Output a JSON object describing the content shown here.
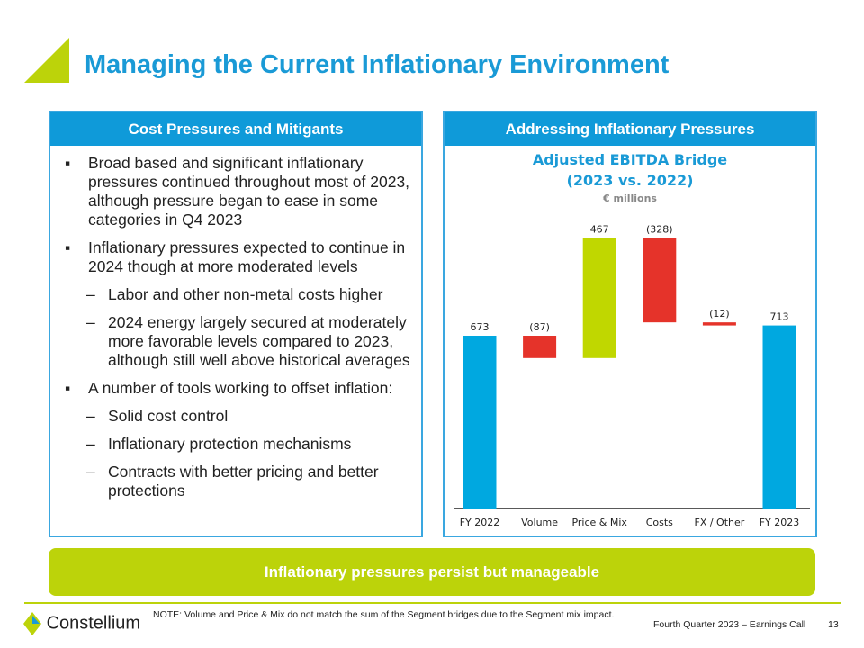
{
  "title": "Managing the Current Inflationary Environment",
  "left_panel": {
    "header": "Cost Pressures and Mitigants",
    "items": [
      {
        "level": 1,
        "text": "Broad based and significant inflationary pressures continued throughout most of 2023, although pressure began to ease in some categories in Q4 2023"
      },
      {
        "level": 1,
        "text": "Inflationary pressures expected to continue in 2024 though at more moderated levels"
      },
      {
        "level": 2,
        "text": "Labor and other non-metal costs higher"
      },
      {
        "level": 2,
        "text": "2024 energy largely secured at moderately more favorable levels compared to 2023, although still well above historical averages"
      },
      {
        "level": 1,
        "text": "A number of tools working to offset inflation:"
      },
      {
        "level": 2,
        "text": "Solid cost control"
      },
      {
        "level": 2,
        "text": "Inflationary protection mechanisms"
      },
      {
        "level": 2,
        "text": "Contracts with better pricing and better protections"
      }
    ]
  },
  "right_panel": {
    "header": "Addressing Inflationary Pressures"
  },
  "chart_data": {
    "type": "waterfall",
    "title": "Adjusted EBITDA Bridge",
    "subtitle": "(2023 vs. 2022)",
    "unit": "€ millions",
    "categories": [
      "FY 2022",
      "Volume",
      "Price & Mix",
      "Costs",
      "FX / Other",
      "FY 2023"
    ],
    "values": [
      673,
      -87,
      467,
      -328,
      -12,
      713
    ],
    "labels": [
      "673",
      "(87)",
      "467",
      "(328)",
      "(12)",
      "713"
    ],
    "kinds": [
      "total",
      "delta",
      "delta",
      "delta",
      "delta",
      "total"
    ],
    "colors": {
      "total": "#00a8e0",
      "increase": "#c0d700",
      "decrease": "#e5332a"
    }
  },
  "banner": "Inflationary pressures persist but manageable",
  "footer": {
    "note": "NOTE: Volume and Price & Mix do not match the sum of the Segment bridges due to the Segment mix impact.",
    "event": "Fourth Quarter 2023 – Earnings Call",
    "page": "13",
    "logo": "Constellium"
  }
}
